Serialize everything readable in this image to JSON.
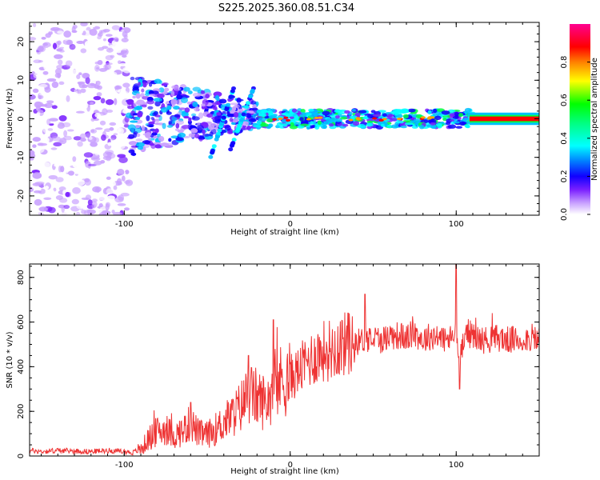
{
  "title": "S225.2025.360.08.51.C34",
  "chart_data": [
    {
      "type": "heatmap",
      "xlabel": "Height of straight line (km)",
      "ylabel": "Frequency (Hz)",
      "xlim": [
        -157,
        150
      ],
      "ylim": [
        -25,
        25
      ],
      "x_ticks": [
        -100,
        0,
        100
      ],
      "y_ticks": [
        20,
        10,
        0,
        -10,
        -20
      ],
      "colorbar": {
        "label": "Normalized spectral amplitude",
        "range": [
          0,
          1
        ],
        "ticks": [
          0.0,
          0.2,
          0.4,
          0.6,
          0.8
        ],
        "tick_labels": [
          "0.0",
          "0.2",
          "0.4",
          "0.6",
          "0.8"
        ],
        "colormap": [
          "#ffffff",
          "#b070ff",
          "#6a00ff",
          "#0000ff",
          "#00ffff",
          "#00ff00",
          "#ffff00",
          "#ff8000",
          "#ff0000",
          "#ff00a0"
        ]
      },
      "description_regions": [
        {
          "x_range": [
            -157,
            -97
          ],
          "freq_range": [
            -25,
            25
          ],
          "amplitude": 0.1
        },
        {
          "x_range": [
            -97,
            -20
          ],
          "freq_range": [
            -10,
            12
          ],
          "amplitude": 0.3
        },
        {
          "x_range": [
            -20,
            110
          ],
          "freq_range": [
            -3,
            3
          ],
          "amplitude": 0.5
        },
        {
          "x_range": [
            110,
            150
          ],
          "freq_range": [
            -1,
            1
          ],
          "amplitude": 0.9
        }
      ]
    },
    {
      "type": "line",
      "xlabel": "Height of straight line (km)",
      "ylabel": "SNR (10 * v/v)",
      "xlim": [
        -157,
        150
      ],
      "ylim": [
        0,
        860
      ],
      "x_ticks": [
        -100,
        0,
        100
      ],
      "y_ticks": [
        0,
        200,
        400,
        600,
        800
      ],
      "series": [
        {
          "name": "SNR",
          "color": "#ee3333",
          "x": [
            -157,
            -150,
            -140,
            -130,
            -120,
            -110,
            -100,
            -95,
            -90,
            -85,
            -80,
            -75,
            -70,
            -65,
            -60,
            -55,
            -50,
            -45,
            -40,
            -35,
            -30,
            -25,
            -20,
            -15,
            -10,
            -5,
            0,
            5,
            10,
            15,
            20,
            25,
            30,
            35,
            40,
            45,
            50,
            55,
            60,
            65,
            70,
            75,
            80,
            85,
            90,
            95,
            100,
            102,
            105,
            110,
            115,
            120,
            125,
            130,
            135,
            140,
            145,
            150
          ],
          "values": [
            25,
            20,
            25,
            22,
            20,
            25,
            20,
            15,
            30,
            80,
            110,
            120,
            90,
            110,
            150,
            100,
            95,
            120,
            150,
            180,
            220,
            280,
            260,
            240,
            300,
            340,
            350,
            380,
            420,
            450,
            470,
            480,
            500,
            500,
            510,
            520,
            530,
            520,
            540,
            540,
            530,
            550,
            520,
            540,
            530,
            520,
            540,
            420,
            560,
            540,
            520,
            520,
            530,
            520,
            520,
            520,
            530,
            520
          ],
          "spikes": [
            {
              "x": -60,
              "value": 240
            },
            {
              "x": -25,
              "value": 450
            },
            {
              "x": -10,
              "value": 610
            },
            {
              "x": 35,
              "value": 640
            },
            {
              "x": 45,
              "value": 725
            },
            {
              "x": 100,
              "value": 858
            },
            {
              "x": 102,
              "value": 300
            }
          ]
        }
      ]
    }
  ]
}
